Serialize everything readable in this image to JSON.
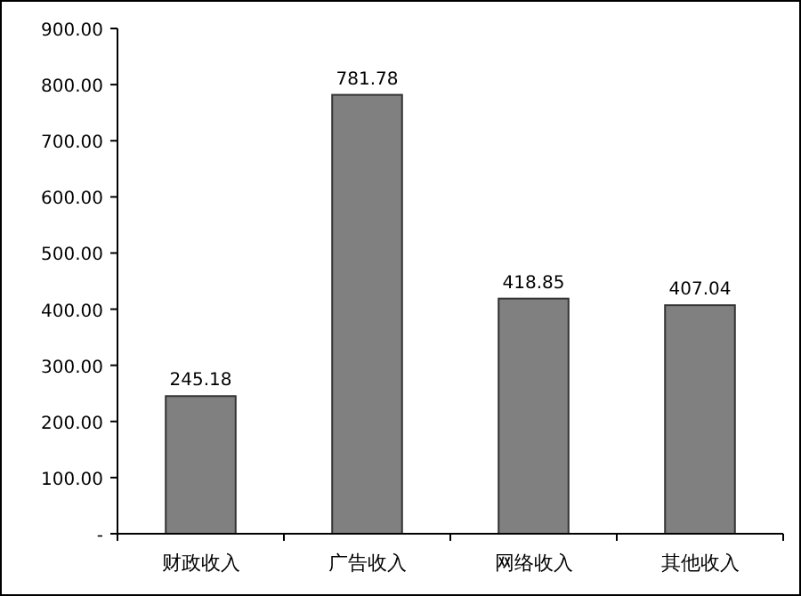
{
  "chart_data": {
    "type": "bar",
    "categories": [
      "财政收入",
      "广告收入",
      "网络收入",
      "其他收入"
    ],
    "values": [
      245.18,
      781.78,
      418.85,
      407.04
    ],
    "color": "#808080",
    "ylim": [
      0,
      900
    ],
    "yticks": [
      {
        "value": 0,
        "label": "-"
      },
      {
        "value": 100,
        "label": "100.00"
      },
      {
        "value": 200,
        "label": "200.00"
      },
      {
        "value": 300,
        "label": "300.00"
      },
      {
        "value": 400,
        "label": "400.00"
      },
      {
        "value": 500,
        "label": "500.00"
      },
      {
        "value": 600,
        "label": "600.00"
      },
      {
        "value": 700,
        "label": "700.00"
      },
      {
        "value": 800,
        "label": "800.00"
      },
      {
        "value": 900,
        "label": "900.00"
      }
    ],
    "data_labels": true,
    "grid": false
  }
}
